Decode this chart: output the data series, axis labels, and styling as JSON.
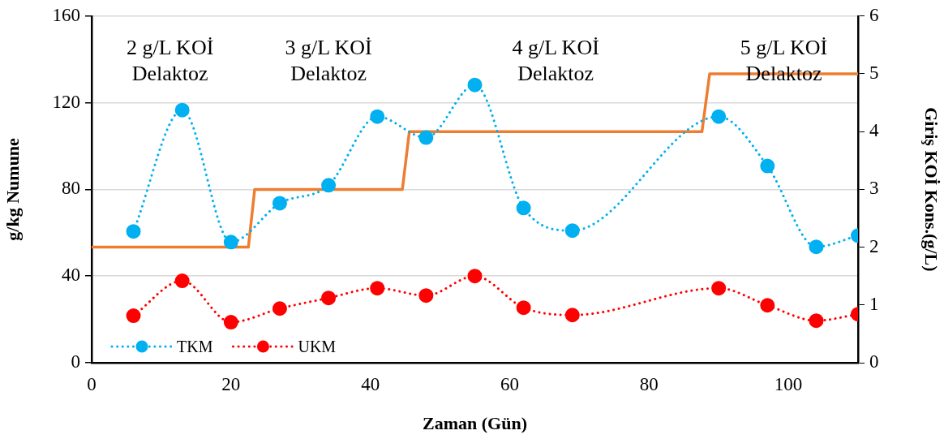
{
  "chart_data": {
    "type": "line",
    "xlabel": "Zaman (Gün)",
    "ylabel": "g/kg Numune",
    "y2label": "Giriş KOİ Kons.(g/L)",
    "xlim": [
      0,
      110
    ],
    "xticks": [
      0,
      20,
      40,
      60,
      80,
      100
    ],
    "ylim": [
      0,
      160
    ],
    "yticks": [
      0,
      40,
      80,
      120,
      160
    ],
    "y2lim": [
      0,
      6
    ],
    "y2ticks": [
      0,
      1,
      2,
      3,
      4,
      5,
      6
    ],
    "grid": "y",
    "legend": "bottom left",
    "marker": "circle",
    "line_style": "dotted",
    "series": [
      {
        "name": "TKM",
        "color": "#00b0f0",
        "x": [
          6,
          13,
          20,
          27,
          34,
          41,
          48,
          55,
          62,
          69,
          90,
          97,
          104,
          110
        ],
        "values": [
          60.6,
          116.6,
          55.7,
          73.6,
          81.9,
          113.6,
          103.9,
          128.2,
          71.4,
          61,
          113.6,
          90.8,
          53.5,
          58.7
        ]
      },
      {
        "name": "UKM",
        "color": "#ff0000",
        "x": [
          6,
          13,
          20,
          27,
          34,
          41,
          48,
          55,
          62,
          69,
          90,
          97,
          104,
          110
        ],
        "values": [
          21.7,
          37.8,
          18.7,
          25,
          29.9,
          34.4,
          31,
          40,
          25.4,
          22,
          34.4,
          26.5,
          19.4,
          22.4
        ]
      },
      {
        "color": "#ed7d31",
        "axis": "y2",
        "marker": "none",
        "line_style": "solid",
        "x": [
          0,
          22.5,
          23.4,
          44.6,
          45.6,
          87.6,
          88.7,
          110
        ],
        "values": [
          2,
          2,
          3,
          3,
          4,
          4,
          5,
          5
        ]
      }
    ],
    "annotations": [
      "2 g/L KOİ\nDelaktoz",
      "3 g/L KOİ\nDelaktoz",
      "4 g/L KOİ\nDelaktoz",
      "5 g/L KOİ\nDelaktoz"
    ]
  }
}
